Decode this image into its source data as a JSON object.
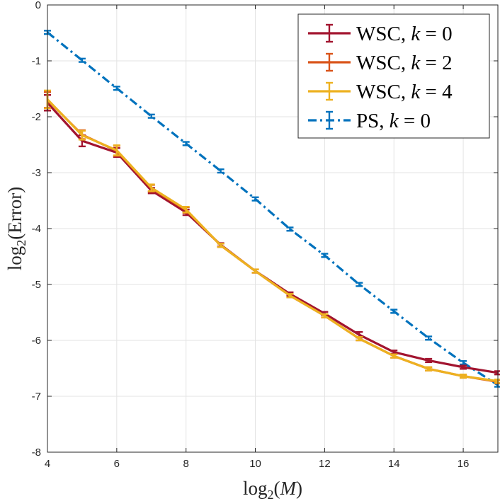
{
  "chart_data": {
    "type": "line",
    "xlabel": {
      "base": "log",
      "sub": "2",
      "open": "(",
      "var": "M",
      "close": ")"
    },
    "ylabel": {
      "base": "log",
      "sub": "2",
      "open": "(",
      "word": "Error",
      "close": ")"
    },
    "xlim": [
      4,
      17
    ],
    "ylim": [
      -8,
      0
    ],
    "xticks": [
      4,
      6,
      8,
      10,
      12,
      14,
      16
    ],
    "yticks": [
      0,
      -1,
      -2,
      -3,
      -4,
      -5,
      -6,
      -7,
      -8
    ],
    "grid": true,
    "legend_position": "top-right",
    "x": [
      4,
      5,
      6,
      7,
      8,
      9,
      10,
      11,
      12,
      13,
      14,
      15,
      16,
      17
    ],
    "series": [
      {
        "name": "WSC, k = 0",
        "legend": {
          "prefix": "WSC, ",
          "var": "k",
          "eq": " = 0"
        },
        "color": "#A2142F",
        "dash": "solid",
        "values": [
          -1.75,
          -2.43,
          -2.64,
          -3.32,
          -3.71,
          -4.29,
          -4.76,
          -5.17,
          -5.52,
          -5.9,
          -6.21,
          -6.36,
          -6.48,
          -6.58
        ],
        "err": [
          0.14,
          0.1,
          0.08,
          0.05,
          0.05,
          0.03,
          0.03,
          0.03,
          0.03,
          0.05,
          0.03,
          0.03,
          0.03,
          0.03
        ]
      },
      {
        "name": "WSC, k = 2",
        "legend": {
          "prefix": "WSC, ",
          "var": "k",
          "eq": " = 2"
        },
        "color": "#D95319",
        "dash": "solid",
        "values": [
          -1.7,
          -2.32,
          -2.61,
          -3.28,
          -3.67,
          -4.3,
          -4.76,
          -5.2,
          -5.56,
          -5.97,
          -6.28,
          -6.51,
          -6.64,
          -6.74
        ],
        "err": [
          0.14,
          0.08,
          0.09,
          0.06,
          0.05,
          0.03,
          0.03,
          0.03,
          0.03,
          0.03,
          0.03,
          0.03,
          0.03,
          0.03
        ]
      },
      {
        "name": "WSC, k = 4",
        "legend": {
          "prefix": "WSC, ",
          "var": "k",
          "eq": " = 4"
        },
        "color": "#EDB120",
        "dash": "solid",
        "values": [
          -1.69,
          -2.33,
          -2.6,
          -3.27,
          -3.66,
          -4.3,
          -4.76,
          -5.2,
          -5.56,
          -5.97,
          -6.28,
          -6.51,
          -6.64,
          -6.73
        ],
        "err": [
          0.16,
          0.08,
          0.09,
          0.06,
          0.05,
          0.03,
          0.03,
          0.03,
          0.03,
          0.03,
          0.03,
          0.03,
          0.03,
          0.03
        ]
      },
      {
        "name": "PS, k = 0",
        "legend": {
          "prefix": "PS, ",
          "var": "k",
          "eq": " = 0"
        },
        "color": "#0072BD",
        "dash": "dashdot",
        "values": [
          -0.49,
          -0.99,
          -1.49,
          -1.99,
          -2.48,
          -2.97,
          -3.47,
          -4.01,
          -4.48,
          -5.0,
          -5.48,
          -5.96,
          -6.4,
          -6.8
        ],
        "err": [
          0.03,
          0.03,
          0.03,
          0.03,
          0.03,
          0.03,
          0.03,
          0.03,
          0.03,
          0.03,
          0.03,
          0.03,
          0.03,
          0.03
        ]
      }
    ]
  }
}
